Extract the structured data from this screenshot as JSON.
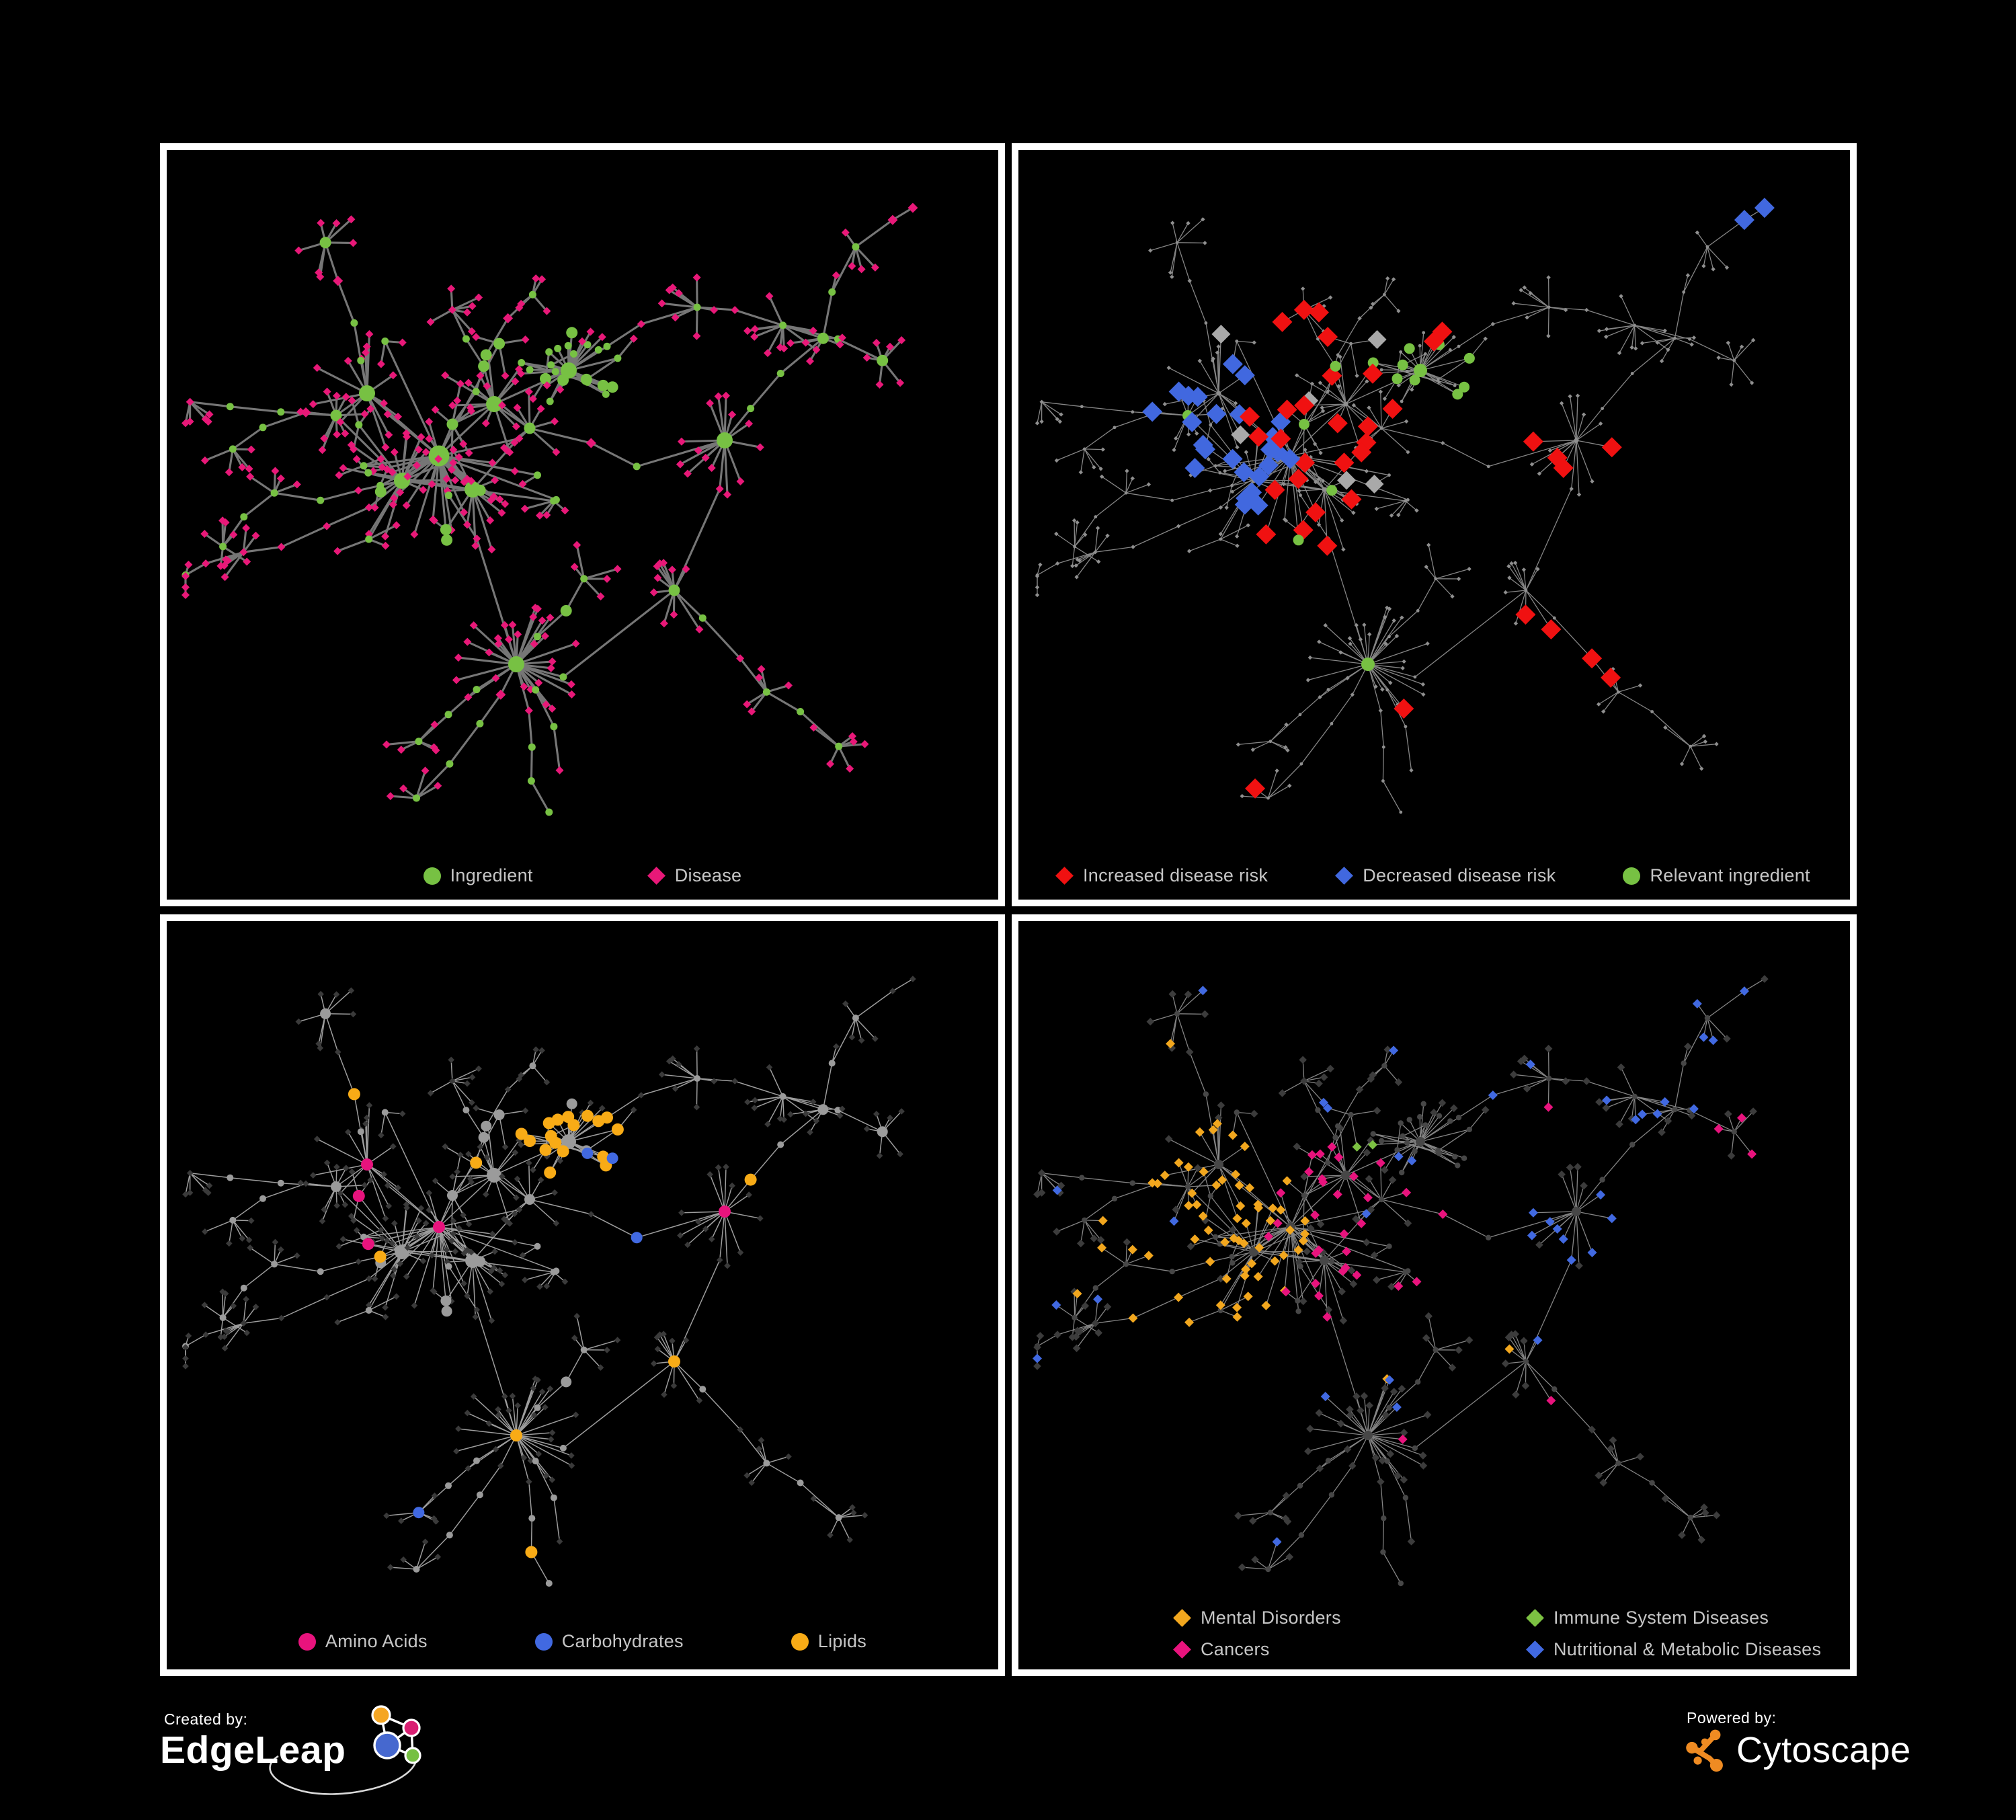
{
  "figure": {
    "background": "#000000",
    "panel_border": "#ffffff"
  },
  "panels": [
    {
      "name": "ingredient-disease-network",
      "legend": [
        {
          "shape": "circle",
          "color": "#77c143",
          "label": "Ingredient"
        },
        {
          "shape": "diamond",
          "color": "#e81878",
          "label": "Disease"
        }
      ]
    },
    {
      "name": "disease-risk-network",
      "legend": [
        {
          "shape": "diamond",
          "color": "#f01111",
          "label": "Increased disease risk"
        },
        {
          "shape": "diamond",
          "color": "#4168df",
          "label": "Decreased disease risk"
        },
        {
          "shape": "circle",
          "color": "#77c143",
          "label": "Relevant ingredient"
        }
      ]
    },
    {
      "name": "nutrient-class-network",
      "legend": [
        {
          "shape": "circle",
          "color": "#e8137d",
          "label": "Amino Acids"
        },
        {
          "shape": "circle",
          "color": "#4169e1",
          "label": "Carbohydrates"
        },
        {
          "shape": "circle",
          "color": "#f8ab16",
          "label": "Lipids"
        }
      ]
    },
    {
      "name": "disease-class-network",
      "legend": [
        {
          "shape": "diamond",
          "color": "#f2a71e",
          "label": "Mental Disorders"
        },
        {
          "shape": "diamond",
          "color": "#7cc142",
          "label": "Immune System Diseases"
        },
        {
          "shape": "diamond",
          "color": "#e8137d",
          "label": "Cancers"
        },
        {
          "shape": "diamond",
          "color": "#4169e1",
          "label": "Nutritional & Metabolic Diseases"
        }
      ]
    }
  ],
  "network_style": {
    "p1": {
      "edge": "#767676",
      "edge_width": 3.1
    },
    "p2": {
      "edge": "#858585",
      "edge_width": 1.3,
      "base_node": "#8f8f8f",
      "neutral_diamond": "#a9a9a9"
    },
    "p3": {
      "edge": "#9d9d9d",
      "edge_width": 1.5,
      "base_circle": "#9b9b9b",
      "base_diamond": "#3a3a3a"
    },
    "p4": {
      "edge": "#848484",
      "edge_width": 1.3,
      "base_circle": "#474747",
      "base_diamond": "#3c3c3c"
    }
  },
  "footer": {
    "created_by_label": "Created by:",
    "created_by_name": "EdgeLeap",
    "powered_by_label": "Powered by:",
    "powered_by_name": "Cytoscape",
    "edgeleap_logo_colors": {
      "orange": "#f5a623",
      "pink": "#d91f72",
      "blue": "#4668cf",
      "green": "#76c043"
    },
    "cytoscape_logo_color": "#ef8b22"
  }
}
